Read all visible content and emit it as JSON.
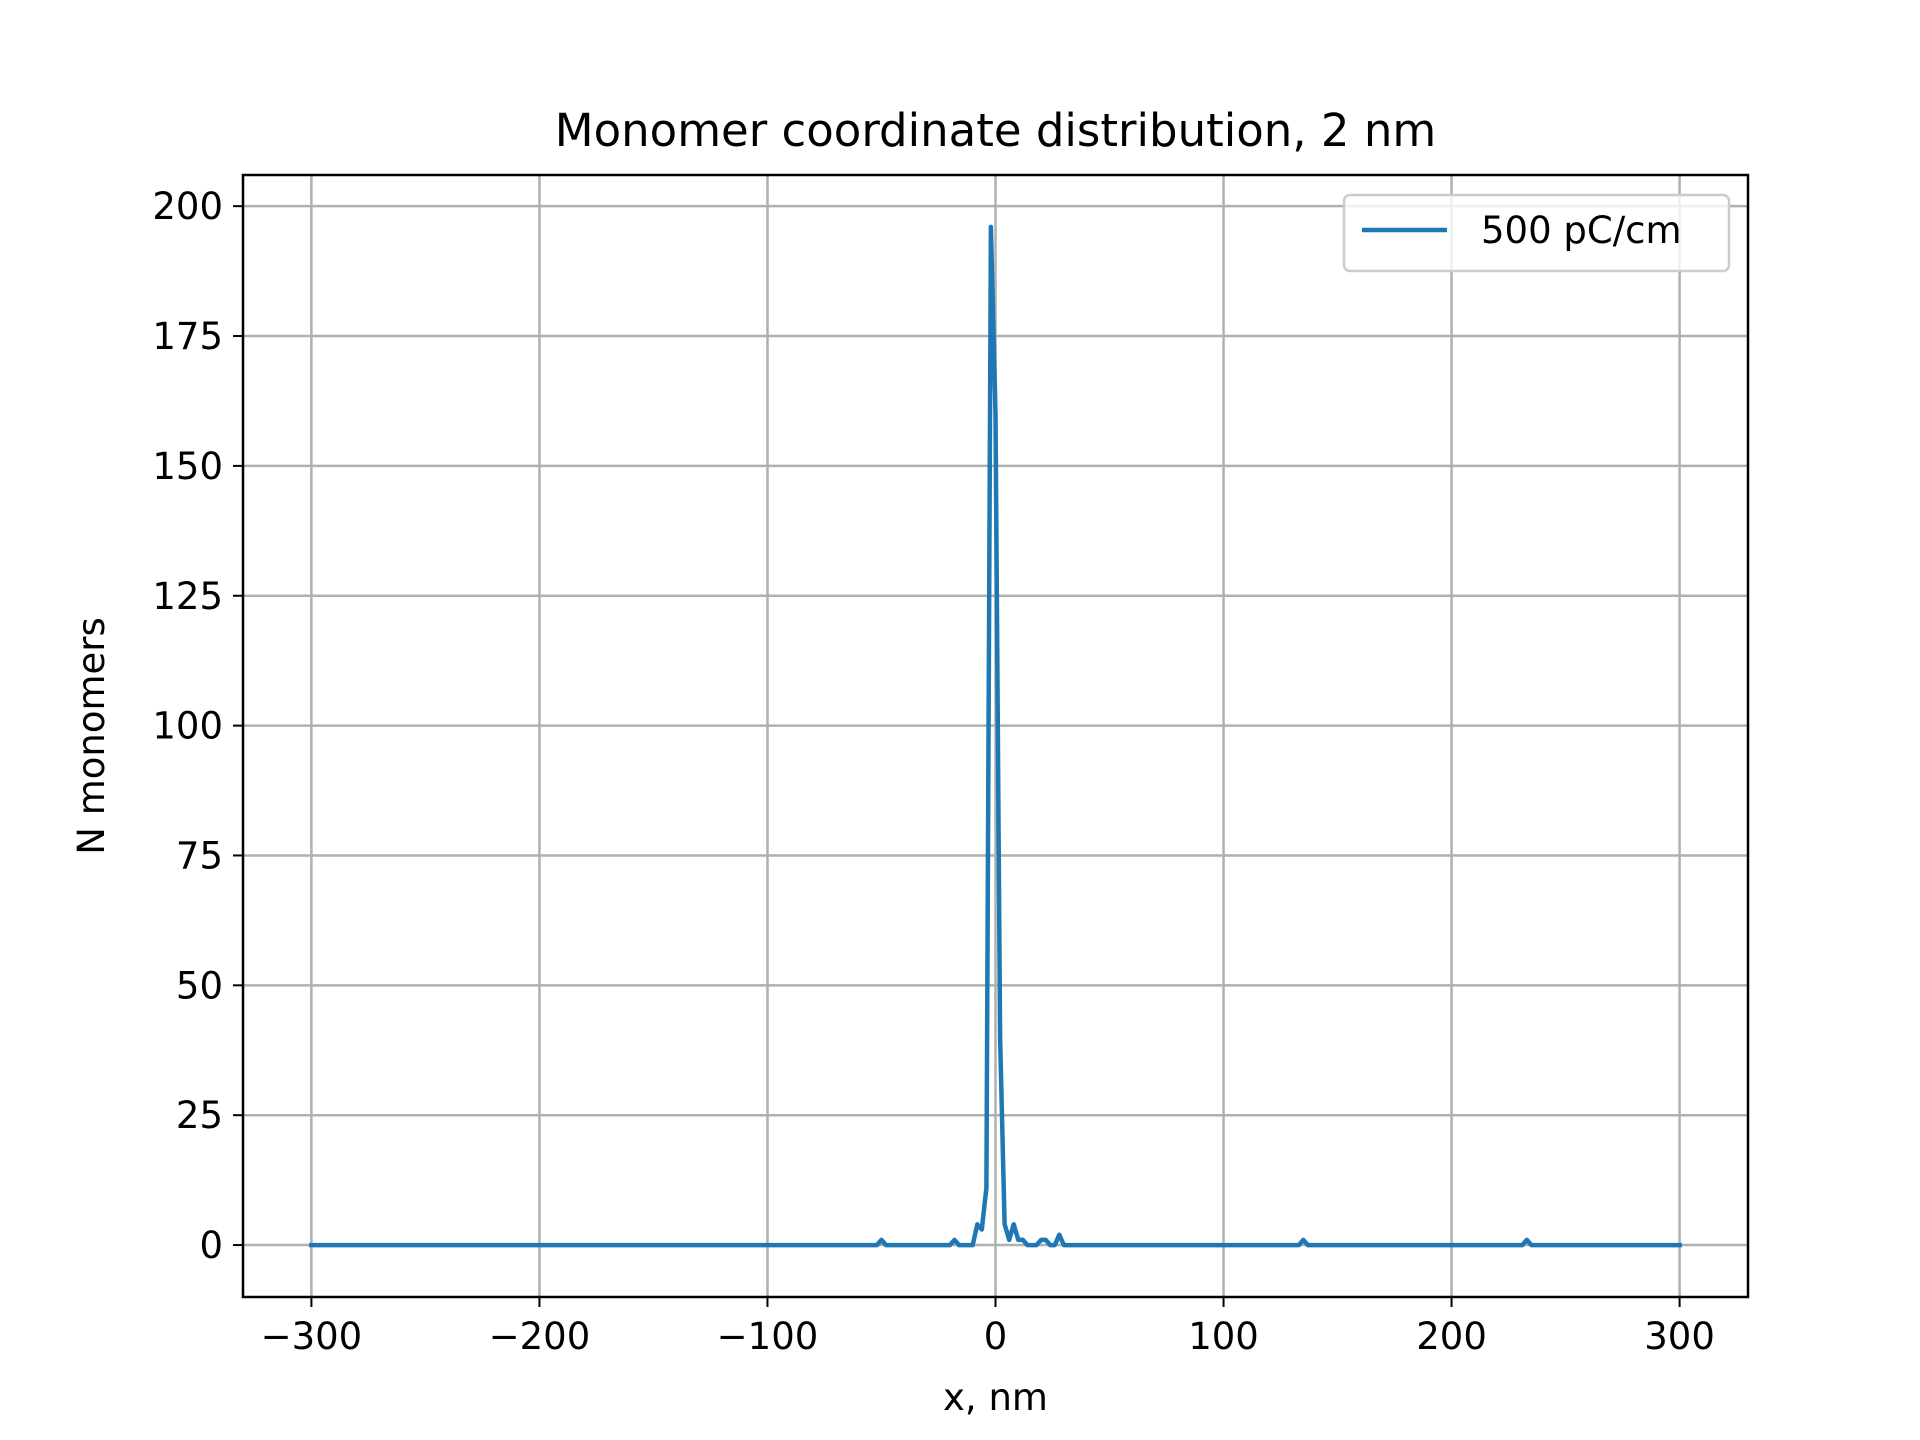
{
  "chart_data": {
    "type": "line",
    "title": "Monomer coordinate distribution, 2 nm",
    "xlabel": "x, nm",
    "ylabel": "N monomers",
    "xlim": [
      -330,
      330
    ],
    "ylim": [
      -10,
      206
    ],
    "xticks": [
      -300,
      -200,
      -100,
      0,
      100,
      200,
      300
    ],
    "xtick_labels": [
      "−300",
      "−200",
      "−100",
      "0",
      "100",
      "200",
      "300"
    ],
    "yticks": [
      0,
      25,
      50,
      75,
      100,
      125,
      150,
      175,
      200
    ],
    "ytick_labels": [
      "0",
      "25",
      "50",
      "75",
      "100",
      "125",
      "150",
      "175",
      "200"
    ],
    "grid": true,
    "legend_position": "top-right",
    "series": [
      {
        "name": "500 pC/cm",
        "color": "#1f77b4",
        "x": [
          -300,
          -52,
          -50,
          -48,
          -20,
          -18,
          -16,
          -10,
          -8,
          -6,
          -4,
          -2,
          0,
          2,
          4,
          6,
          8,
          10,
          12,
          14,
          16,
          18,
          20,
          22,
          24,
          26,
          28,
          30,
          133,
          135,
          137,
          231,
          233,
          235,
          300
        ],
        "y": [
          0,
          0,
          1,
          0,
          0,
          1,
          0,
          0,
          4,
          3,
          11,
          196,
          160,
          40,
          4,
          1,
          4,
          1,
          1,
          0,
          0,
          0,
          1,
          1,
          0,
          0,
          2,
          0,
          0,
          1,
          0,
          0,
          1,
          0,
          0
        ]
      }
    ]
  }
}
